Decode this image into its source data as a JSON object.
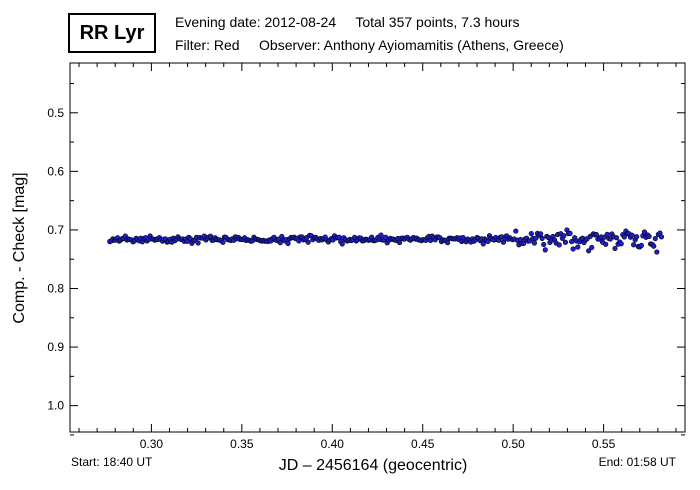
{
  "header": {
    "star_name": "RR Lyr",
    "line1": "Evening date: 2012-08-24     Total 357 points, 7.3 hours",
    "line2": "Filter: Red     Observer: Anthony Ayiomamitis (Athens, Greece)"
  },
  "footer": {
    "start": "Start: 18:40 UT",
    "end": "End: 01:58 UT"
  },
  "chart_data": {
    "type": "scatter",
    "xlabel": "JD – 2456164  (geocentric)",
    "ylabel": "Comp. - Check [mag]",
    "xlim": [
      0.255,
      0.595
    ],
    "ylim": [
      1.045,
      0.415
    ],
    "y_inverted": true,
    "x_ticks": [
      "0.30",
      "0.35",
      "0.40",
      "0.45",
      "0.50",
      "0.55"
    ],
    "y_ticks": [
      "0.5",
      "0.6",
      "0.7",
      "0.8",
      "0.9",
      "1.0"
    ],
    "marker_color": "#1f1fc8",
    "marker_edge": "#000000",
    "series": [
      {
        "x_start": 0.277,
        "x_end": 0.582,
        "count": 357,
        "y_mean": 0.716,
        "scatter_early": 0.004,
        "scatter_late": 0.012,
        "late_start": 0.5
      }
    ]
  }
}
